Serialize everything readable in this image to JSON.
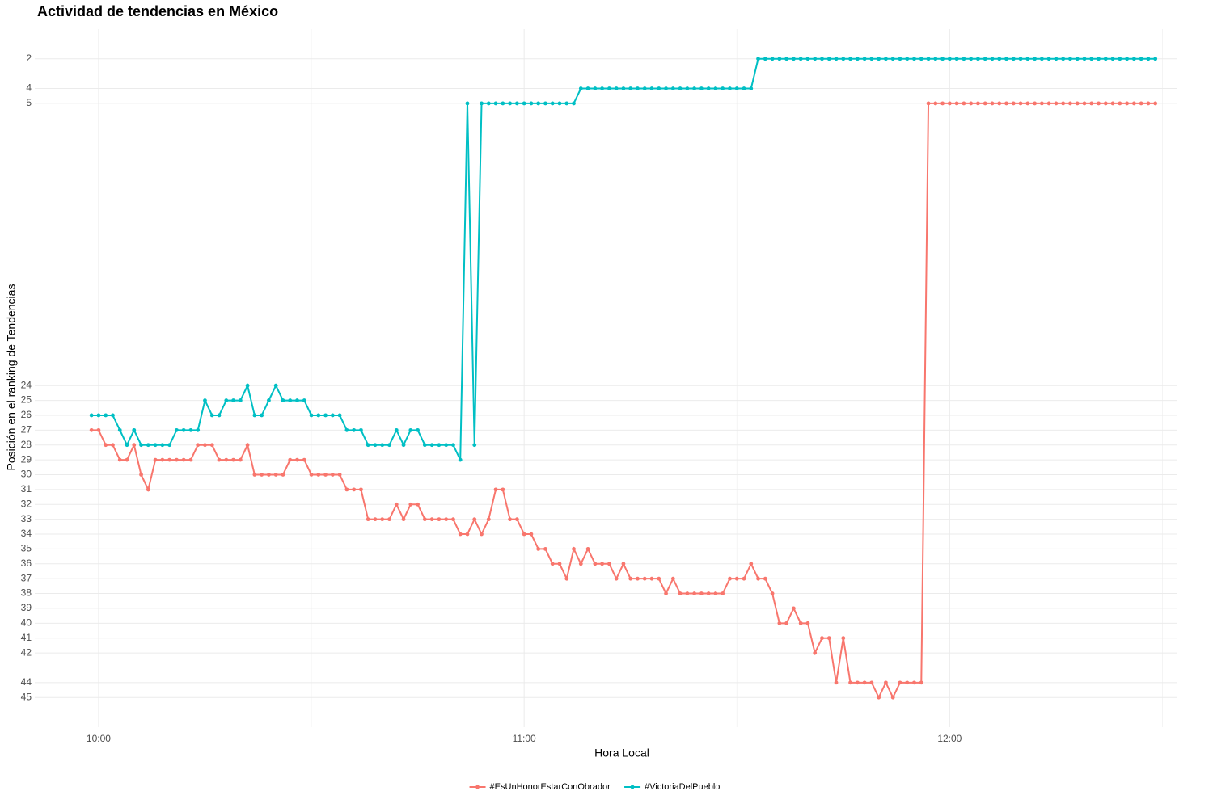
{
  "chart_data": {
    "type": "line",
    "title": "Actividad de tendencias en México",
    "x_label": "Hora Local",
    "y_label": "Posición en el ranking de Tendencias",
    "x": [
      "09:59",
      "10:00",
      "10:01",
      "10:02",
      "10:03",
      "10:04",
      "10:05",
      "10:06",
      "10:07",
      "10:08",
      "10:09",
      "10:10",
      "10:11",
      "10:12",
      "10:13",
      "10:14",
      "10:15",
      "10:16",
      "10:17",
      "10:18",
      "10:19",
      "10:20",
      "10:21",
      "10:22",
      "10:23",
      "10:24",
      "10:25",
      "10:26",
      "10:27",
      "10:28",
      "10:29",
      "10:30",
      "10:31",
      "10:32",
      "10:33",
      "10:34",
      "10:35",
      "10:36",
      "10:37",
      "10:38",
      "10:39",
      "10:40",
      "10:41",
      "10:42",
      "10:43",
      "10:44",
      "10:45",
      "10:46",
      "10:47",
      "10:48",
      "10:49",
      "10:50",
      "10:51",
      "10:52",
      "10:53",
      "10:54",
      "10:55",
      "10:56",
      "10:57",
      "10:58",
      "10:59",
      "11:00",
      "11:01",
      "11:02",
      "11:03",
      "11:04",
      "11:05",
      "11:06",
      "11:07",
      "11:08",
      "11:09",
      "11:10",
      "11:11",
      "11:12",
      "11:13",
      "11:14",
      "11:15",
      "11:16",
      "11:17",
      "11:18",
      "11:19",
      "11:20",
      "11:21",
      "11:22",
      "11:23",
      "11:24",
      "11:25",
      "11:26",
      "11:27",
      "11:28",
      "11:29",
      "11:30",
      "11:31",
      "11:32",
      "11:33",
      "11:34",
      "11:35",
      "11:36",
      "11:37",
      "11:38",
      "11:39",
      "11:40",
      "11:41",
      "11:42",
      "11:43",
      "11:44",
      "11:45",
      "11:46",
      "11:47",
      "11:48",
      "11:49",
      "11:50",
      "11:51",
      "11:52",
      "11:53",
      "11:54",
      "11:55",
      "11:56",
      "11:57",
      "11:58",
      "11:59",
      "12:00",
      "12:01",
      "12:02",
      "12:03",
      "12:04",
      "12:05",
      "12:06",
      "12:07",
      "12:08",
      "12:09",
      "12:10",
      "12:11",
      "12:12",
      "12:13",
      "12:14",
      "12:15",
      "12:16",
      "12:17",
      "12:18",
      "12:19",
      "12:20",
      "12:21",
      "12:22",
      "12:23",
      "12:24",
      "12:25",
      "12:26",
      "12:27",
      "12:28",
      "12:29"
    ],
    "series": [
      {
        "name": "#EsUnHonorEstarConObrador",
        "color": "#F8766D",
        "values": [
          27,
          27,
          28,
          28,
          29,
          29,
          28,
          30,
          31,
          29,
          29,
          29,
          29,
          29,
          29,
          28,
          28,
          28,
          29,
          29,
          29,
          29,
          28,
          30,
          30,
          30,
          30,
          30,
          29,
          29,
          29,
          30,
          30,
          30,
          30,
          30,
          31,
          31,
          31,
          33,
          33,
          33,
          33,
          32,
          33,
          32,
          32,
          33,
          33,
          33,
          33,
          33,
          34,
          34,
          33,
          34,
          33,
          31,
          31,
          33,
          33,
          34,
          34,
          35,
          35,
          36,
          36,
          37,
          35,
          36,
          35,
          36,
          36,
          36,
          37,
          36,
          37,
          37,
          37,
          37,
          37,
          38,
          37,
          38,
          38,
          38,
          38,
          38,
          38,
          38,
          37,
          37,
          37,
          36,
          37,
          37,
          38,
          40,
          40,
          39,
          40,
          40,
          42,
          41,
          41,
          44,
          41,
          44,
          44,
          44,
          44,
          45,
          44,
          45,
          44,
          44,
          44,
          44,
          5,
          5,
          5,
          5,
          5,
          5,
          5,
          5,
          5,
          5,
          5,
          5,
          5,
          5,
          5,
          5,
          5,
          5,
          5,
          5,
          5,
          5,
          5,
          5,
          5,
          5,
          5,
          5,
          5,
          5,
          5,
          5,
          5
        ]
      },
      {
        "name": "#VictoriaDelPueblo",
        "color": "#00BFC4",
        "values": [
          26,
          26,
          26,
          26,
          27,
          28,
          27,
          28,
          28,
          28,
          28,
          28,
          27,
          27,
          27,
          27,
          25,
          26,
          26,
          25,
          25,
          25,
          24,
          26,
          26,
          25,
          24,
          25,
          25,
          25,
          25,
          26,
          26,
          26,
          26,
          26,
          27,
          27,
          27,
          28,
          28,
          28,
          28,
          27,
          28,
          27,
          27,
          28,
          28,
          28,
          28,
          28,
          29,
          5,
          28,
          5,
          5,
          5,
          5,
          5,
          5,
          5,
          5,
          5,
          5,
          5,
          5,
          5,
          5,
          4,
          4,
          4,
          4,
          4,
          4,
          4,
          4,
          4,
          4,
          4,
          4,
          4,
          4,
          4,
          4,
          4,
          4,
          4,
          4,
          4,
          4,
          4,
          4,
          4,
          2,
          2,
          2,
          2,
          2,
          2,
          2,
          2,
          2,
          2,
          2,
          2,
          2,
          2,
          2,
          2,
          2,
          2,
          2,
          2,
          2,
          2,
          2,
          2,
          2,
          2,
          2,
          2,
          2,
          2,
          2,
          2,
          2,
          2,
          2,
          2,
          2,
          2,
          2,
          2,
          2,
          2,
          2,
          2,
          2,
          2,
          2,
          2,
          2,
          2,
          2,
          2,
          2,
          2,
          2,
          2,
          2
        ]
      }
    ],
    "xlim": [
      "09:51",
      "12:32"
    ],
    "xticks": [
      "10:00",
      "11:00",
      "12:00"
    ],
    "xminorticks": [
      "10:30",
      "11:30",
      "12:30"
    ],
    "ylim": [
      0,
      47
    ],
    "y_reversed": true,
    "yticks": [
      2,
      4,
      5,
      24,
      25,
      26,
      27,
      28,
      29,
      30,
      31,
      32,
      33,
      34,
      35,
      36,
      37,
      38,
      39,
      40,
      41,
      42,
      44,
      45
    ],
    "grid": true,
    "legend": "bottom"
  }
}
